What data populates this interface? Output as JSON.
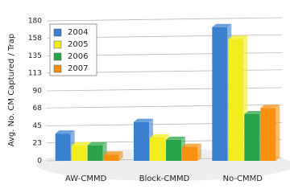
{
  "chart_data": {
    "type": "bar",
    "y_label": "Avg. No. CM Captured / Trap",
    "categories": [
      "AW-CMMD",
      "Block-CMMD",
      "No-CMMD"
    ],
    "series": [
      {
        "name": "2004",
        "color": "#3a7fd0",
        "values": [
          35,
          50,
          172
        ]
      },
      {
        "name": "2005",
        "color": "#f2ee1e",
        "values": [
          20,
          30,
          157
        ]
      },
      {
        "name": "2006",
        "color": "#2aa44a",
        "values": [
          20,
          27,
          60
        ]
      },
      {
        "name": "2007",
        "color": "#f7900f",
        "values": [
          8,
          18,
          68
        ]
      }
    ],
    "ylim": [
      0,
      180
    ],
    "yticks": [
      0,
      23,
      45,
      68,
      90,
      113,
      135,
      158,
      180
    ],
    "grid": true
  }
}
